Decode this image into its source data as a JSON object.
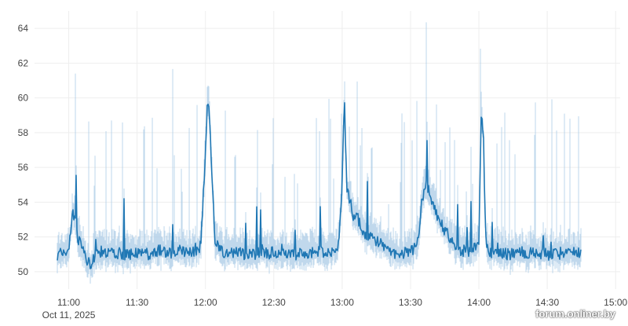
{
  "chart_data": {
    "type": "line",
    "x_start": "10:55",
    "x_end": "14:45",
    "xlim": [
      "10:45",
      "15:02"
    ],
    "ylim": [
      49,
      65
    ],
    "grid": true,
    "y_ticks": [
      "50",
      "52",
      "54",
      "56",
      "58",
      "60",
      "62",
      "64"
    ],
    "x_ticks": [
      "11:00",
      "11:30",
      "12:00",
      "12:30",
      "13:00",
      "13:30",
      "14:00",
      "14:30",
      "15:00"
    ],
    "x_date_label": "Oct 11, 2025",
    "colors": {
      "line": "#1f77b4",
      "band": "#a8cae6",
      "grid": "#eeeeee"
    },
    "series": [
      {
        "x": [
          "10:55",
          "10:58",
          "11:00",
          "11:02",
          "11:04",
          "11:06",
          "11:08",
          "11:10",
          "11:12",
          "11:15",
          "11:20",
          "11:25",
          "11:30",
          "11:35",
          "11:40",
          "11:45",
          "11:50",
          "11:55",
          "11:58",
          "12:00",
          "12:01",
          "12:02",
          "12:04",
          "12:06",
          "12:10",
          "12:20",
          "12:30",
          "12:40",
          "12:50",
          "12:58",
          "12:59",
          "13:00",
          "13:01",
          "13:02",
          "13:03",
          "13:05",
          "13:07",
          "13:10",
          "13:15",
          "13:20",
          "13:25",
          "13:30",
          "13:33",
          "13:35",
          "13:37",
          "13:40",
          "13:43",
          "13:46",
          "13:50",
          "13:55",
          "14:00",
          "14:01",
          "14:02",
          "14:03",
          "14:04",
          "14:06",
          "14:10",
          "14:20",
          "14:30",
          "14:40",
          "14:45"
        ],
        "y": [
          51.0,
          51.1,
          51.3,
          53.5,
          52.0,
          51.2,
          50.6,
          50.4,
          51.0,
          51.2,
          51.1,
          51.0,
          51.1,
          51.0,
          51.2,
          51.0,
          51.1,
          51.2,
          51.5,
          57.0,
          60.2,
          58.3,
          52.0,
          51.2,
          51.1,
          51.0,
          51.1,
          51.0,
          51.1,
          51.3,
          52.5,
          55.0,
          60.0,
          54.8,
          54.3,
          53.2,
          53.0,
          52.2,
          51.8,
          51.2,
          51.0,
          51.1,
          51.5,
          54.0,
          55.0,
          54.0,
          52.8,
          52.2,
          51.4,
          51.1,
          51.6,
          59.2,
          57.8,
          52.0,
          51.2,
          51.1,
          51.0,
          51.1,
          51.0,
          51.1,
          51.0
        ]
      }
    ]
  },
  "watermark": "forum.onliner.by"
}
